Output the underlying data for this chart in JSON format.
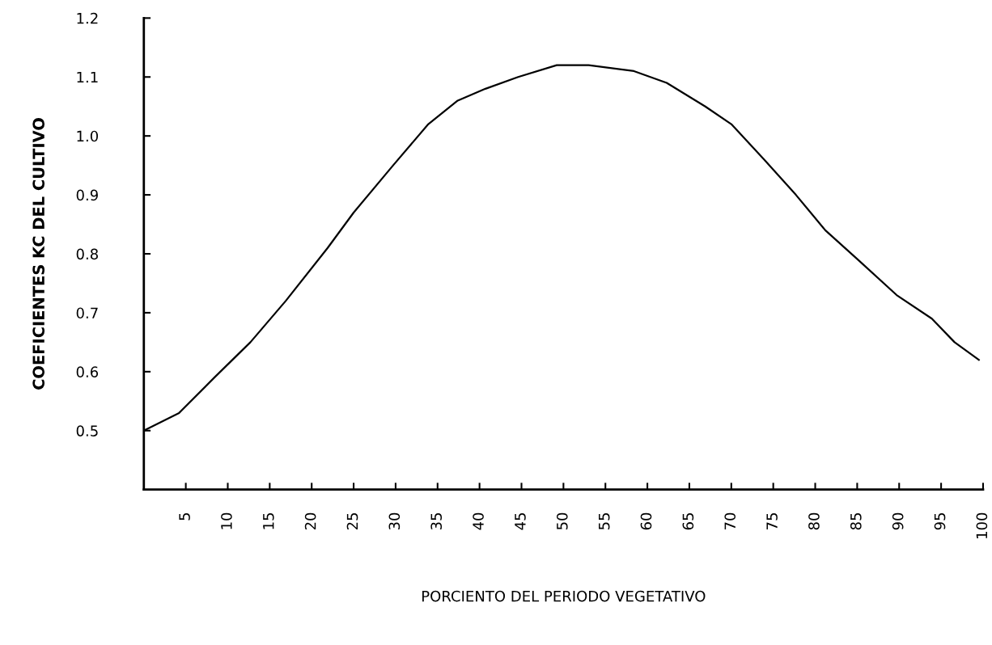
{
  "chart_data": {
    "type": "line",
    "xlabel": "PORCIENTO DEL PERIODO VEGETATIVO",
    "ylabel": "COEFICIENTES KC DEL CULTIVO",
    "x": [
      0,
      4.2,
      8.4,
      12.7,
      16.9,
      21.9,
      25.0,
      29.7,
      33.9,
      37.4,
      40.7,
      44.6,
      49.2,
      53.0,
      58.4,
      62.3,
      66.9,
      70.0,
      73.9,
      77.7,
      81.2,
      85.1,
      89.7,
      93.9,
      96.6,
      99.5
    ],
    "series": [
      {
        "color": "#000000",
        "values": [
          0.5,
          0.53,
          0.59,
          0.65,
          0.72,
          0.81,
          0.87,
          0.95,
          1.02,
          1.06,
          1.08,
          1.1,
          1.12,
          1.12,
          1.11,
          1.09,
          1.05,
          1.02,
          0.96,
          0.9,
          0.84,
          0.79,
          0.73,
          0.69,
          0.65,
          0.62
        ]
      }
    ],
    "xlim": [
      0,
      100
    ],
    "xticks": [
      5,
      10,
      15,
      20,
      25,
      30,
      35,
      40,
      45,
      50,
      55,
      60,
      65,
      70,
      75,
      80,
      85,
      90,
      95,
      100
    ],
    "ylim": [
      0.4,
      1.2
    ],
    "yticks": [
      0.5,
      0.6,
      0.7,
      0.8,
      0.9,
      {
        "value": 1.0,
        "label": "1.0"
      },
      1.1,
      1.2
    ],
    "grid": false,
    "marker": "none",
    "line_style": "solid"
  }
}
